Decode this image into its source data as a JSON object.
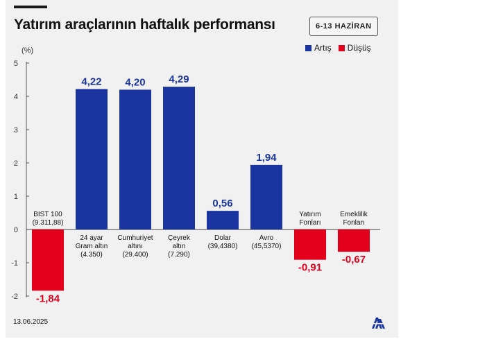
{
  "header": {
    "title": "Yatırım araçlarının haftalık performansı",
    "date_range": "6-13 HAZİRAN"
  },
  "legend": {
    "items": [
      {
        "label": "Artış",
        "color": "#1a35a0"
      },
      {
        "label": "Düşüş",
        "color": "#e3001b"
      }
    ]
  },
  "footer": {
    "date": "13.06.2025",
    "logo_icon": "aa-logo-icon"
  },
  "chart_data": {
    "type": "bar",
    "ylabel": "(%)",
    "ylim": [
      -2,
      5
    ],
    "yticks": [
      -2,
      -1,
      0,
      1,
      2,
      3,
      4,
      5
    ],
    "grid": false,
    "legend_position": "top-right",
    "categories": [
      [
        "BIST 100",
        "(9.311,88)"
      ],
      [
        "24 ayar",
        "Gram altın",
        "(4.350)"
      ],
      [
        "Cumhuriyet",
        "altını",
        "(29.400)"
      ],
      [
        "Çeyrek",
        "altın",
        "(7.290)"
      ],
      [
        "Dolar",
        "(39,4380)"
      ],
      [
        "Avro",
        "(45,5370)"
      ],
      [
        "Yatırım",
        "Fonları"
      ],
      [
        "Emeklilik",
        "Fonları"
      ]
    ],
    "values": [
      -1.84,
      4.22,
      4.2,
      4.29,
      0.56,
      1.94,
      -0.91,
      -0.67
    ],
    "value_labels": [
      "-1,84",
      "4,22",
      "4,20",
      "4,29",
      "0,56",
      "1,94",
      "-0,91",
      "-0,67"
    ],
    "colors": {
      "positive": "#1a35a0",
      "negative": "#e3001b"
    }
  }
}
